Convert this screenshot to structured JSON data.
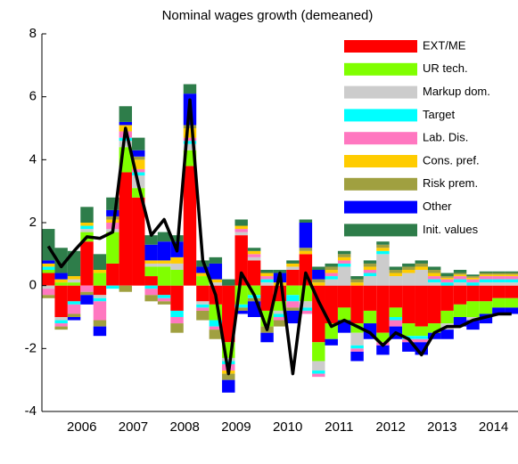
{
  "chart_data": {
    "type": "bar",
    "title": "Nominal wages growth (demeaned)",
    "categories": [
      null,
      null,
      null,
      "2006",
      null,
      null,
      null,
      "2007",
      null,
      null,
      null,
      "2008",
      null,
      null,
      null,
      "2009",
      null,
      null,
      null,
      "2010",
      null,
      null,
      null,
      "2011",
      null,
      null,
      null,
      "2012",
      null,
      null,
      null,
      "2013",
      null,
      null,
      null,
      "2014",
      null
    ],
    "series": [
      {
        "name": "EXT/ME",
        "color": "#ff0000",
        "values": [
          0.4,
          -1.0,
          -0.5,
          1.4,
          -0.3,
          0.7,
          3.6,
          2.8,
          0.3,
          -0.3,
          -0.8,
          3.8,
          -0.5,
          -0.6,
          -1.8,
          1.6,
          0.8,
          -0.8,
          -0.5,
          0.5,
          1.0,
          -1.8,
          -1.2,
          -0.7,
          -1.2,
          -0.8,
          -1.5,
          -0.7,
          -1.2,
          -1.3,
          -1.2,
          -0.8,
          -0.6,
          -0.5,
          -0.5,
          -0.4,
          -0.4
        ]
      },
      {
        "name": "UR tech.",
        "color": "#80ff00",
        "values": [
          0.1,
          0.1,
          0.1,
          0.3,
          0.4,
          1.0,
          0.8,
          0.3,
          0.3,
          0.6,
          0.5,
          0.5,
          0.3,
          -0.5,
          -0.5,
          -0.6,
          -0.3,
          -0.5,
          -0.3,
          -0.3,
          -0.5,
          -0.6,
          -0.5,
          -0.4,
          -0.3,
          -0.4,
          -0.3,
          -0.3,
          -0.4,
          -0.3,
          -0.3,
          -0.4,
          -0.4,
          -0.5,
          -0.4,
          -0.3,
          -0.3
        ]
      },
      {
        "name": "Markup dom.",
        "color": "#cccccc",
        "values": [
          -0.1,
          -0.1,
          0.1,
          0.1,
          -0.1,
          0.1,
          0.2,
          0.4,
          0.1,
          0.1,
          0.2,
          0.2,
          -0.1,
          0.1,
          -0.1,
          0.1,
          0.1,
          0.1,
          -0.1,
          0.1,
          -0.2,
          -0.3,
          0.2,
          0.6,
          -0.4,
          0.3,
          1.0,
          0.3,
          0.4,
          0.5,
          0.1,
          -0.2,
          0.1,
          -0.1,
          0.1,
          0.1,
          0.1
        ]
      },
      {
        "name": "Target",
        "color": "#00ffff",
        "values": [
          0.1,
          -0.1,
          -0.1,
          0.1,
          -0.1,
          -0.1,
          0.1,
          0.1,
          -0.1,
          -0.1,
          -0.2,
          0.1,
          -0.1,
          -0.2,
          -0.1,
          -0.1,
          -0.1,
          0.1,
          -0.1,
          -0.2,
          -0.1,
          -0.1,
          0.1,
          0.1,
          -0.1,
          0.1,
          0.1,
          -0.1,
          -0.1,
          -0.1,
          0.1,
          0.1,
          0.1,
          0.1,
          0.1,
          0.1,
          0.1
        ]
      },
      {
        "name": "Lab. Dis.",
        "color": "#ff77c0",
        "values": [
          -0.2,
          -0.1,
          -0.3,
          -0.2,
          -0.6,
          0.2,
          0.2,
          0.1,
          -0.2,
          -0.1,
          -0.2,
          0.1,
          -0.1,
          -0.1,
          -0.2,
          0.1,
          0.1,
          0.1,
          -0.1,
          -0.2,
          -0.1,
          -0.1,
          0.1,
          0.1,
          -0.1,
          0.1,
          -0.1,
          -0.2,
          -0.1,
          -0.1,
          0.1,
          0.1,
          0.1,
          0.1,
          0.1,
          0.1,
          0.1
        ]
      },
      {
        "name": "Cons. pref.",
        "color": "#ffcc00",
        "values": [
          0.1,
          0.1,
          0.1,
          0.1,
          0.1,
          0.1,
          0.2,
          0.3,
          0.1,
          0.1,
          0.2,
          0.3,
          0.1,
          0.1,
          -0.1,
          0.1,
          0.1,
          0.1,
          0.1,
          0.1,
          0.1,
          0.1,
          0.1,
          0.1,
          0.1,
          0.1,
          0.1,
          0.1,
          0.1,
          0.1,
          0.1,
          0.05,
          0.05,
          0.05,
          0.05,
          0.05,
          0.05
        ]
      },
      {
        "name": "Risk prem.",
        "color": "#a0a040",
        "values": [
          -0.1,
          -0.1,
          -0.1,
          -0.1,
          -0.2,
          0.1,
          -0.2,
          0.1,
          -0.2,
          -0.1,
          -0.3,
          0.1,
          -0.3,
          -0.3,
          -0.2,
          -0.1,
          -0.1,
          -0.2,
          -0.2,
          -0.1,
          0.1,
          0.1,
          0.1,
          0.1,
          0.1,
          0.1,
          0.1,
          0.1,
          0.1,
          0.1,
          0.1,
          0.05,
          0.05,
          0.05,
          0.05,
          0.05,
          0.05
        ]
      },
      {
        "name": "Other",
        "color": "#0000ff",
        "values": [
          0.1,
          0.2,
          -0.1,
          -0.3,
          -0.3,
          0.2,
          0.1,
          0.2,
          0.5,
          0.6,
          0.5,
          1.0,
          0.2,
          0.5,
          -0.4,
          -0.1,
          -0.5,
          -0.3,
          0.3,
          -0.4,
          0.8,
          0.3,
          -0.2,
          -0.4,
          -0.3,
          -0.5,
          -0.3,
          -0.4,
          -0.3,
          -0.4,
          -0.2,
          -0.3,
          -0.3,
          -0.3,
          -0.3,
          -0.2,
          -0.2
        ]
      },
      {
        "name": "Init. values",
        "color": "#2e7d4a",
        "values": [
          1.0,
          0.8,
          0.8,
          0.5,
          0.5,
          0.4,
          0.5,
          0.4,
          0.3,
          0.3,
          0.2,
          0.3,
          0.2,
          0.2,
          0.2,
          0.2,
          0.1,
          0.1,
          0.1,
          0.1,
          0.1,
          0.1,
          0.1,
          0.1,
          0.1,
          0.1,
          0.1,
          0.1,
          0.1,
          0.1,
          0.1,
          0.1,
          0.1,
          0.05,
          0.05,
          0.05,
          0.05
        ]
      }
    ],
    "line": {
      "color": "#000000",
      "values": [
        1.25,
        0.6,
        1.1,
        1.55,
        1.5,
        1.7,
        5.0,
        3.2,
        1.6,
        2.1,
        1.1,
        5.9,
        0.8,
        -0.3,
        -2.8,
        0.4,
        -0.3,
        -1.4,
        0.4,
        -2.8,
        0.4,
        -0.5,
        -1.3,
        -1.1,
        -1.3,
        -1.5,
        -1.9,
        -1.5,
        -1.7,
        -2.2,
        -1.5,
        -1.3,
        -1.3,
        -1.1,
        -1.0,
        -0.9,
        -0.9
      ]
    },
    "ylim": [
      -4,
      8
    ],
    "yticks": [
      -4,
      -2,
      0,
      2,
      4,
      6,
      8
    ],
    "legend": "upper right",
    "stacked": true
  }
}
